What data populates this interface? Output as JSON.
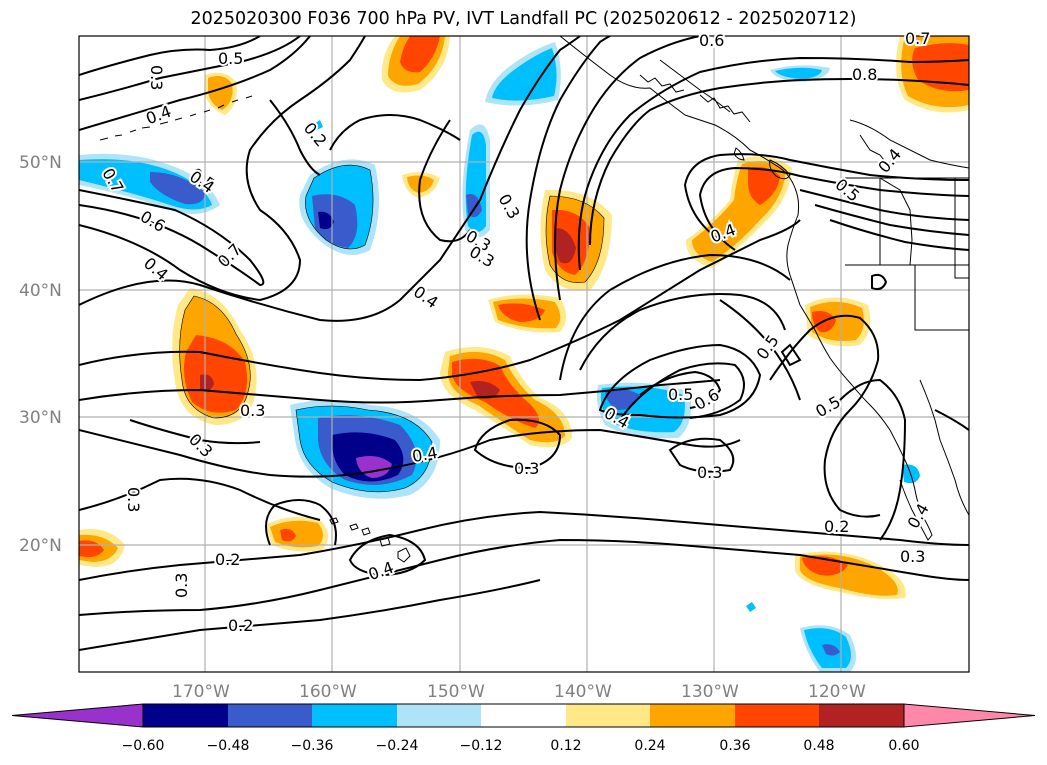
{
  "title": "2025020300 F036 700 hPa PV, IVT Landfall PC (2025020612 - 2025020712)",
  "lat_labels": [
    "50°N",
    "40°N",
    "30°N",
    "20°N"
  ],
  "lon_labels": [
    "170°W",
    "160°W",
    "150°W",
    "140°W",
    "130°W",
    "120°W"
  ],
  "contour_labels": [
    "0.5",
    "0.3",
    "0.4",
    "0.2",
    "0.5",
    "0.7",
    "0.6",
    "0.7",
    "0.4",
    "0.3",
    "0.4",
    "0.3",
    "0.4",
    "0.3",
    "0.3",
    "0.5",
    "0.6",
    "0.8",
    "0.4",
    "0.5",
    "0.4",
    "0.7",
    "0.6",
    "0.5",
    "0.5",
    "0.4",
    "0.3",
    "0.4",
    "0.3",
    "0.3",
    "0.4",
    "0.3",
    "0.2",
    "0.2",
    "0.2",
    "0.3",
    "0.3",
    "0.4"
  ],
  "colorbar": {
    "ticks": [
      "−0.60",
      "−0.48",
      "−0.36",
      "−0.24",
      "−0.12",
      "0.12",
      "0.24",
      "0.36",
      "0.48",
      "0.60"
    ],
    "colors": [
      "#9932cc",
      "#00008b",
      "#3a5bcc",
      "#00bfff",
      "#aee3f8",
      "#ffffff",
      "#ffe888",
      "#ffa500",
      "#ff4500",
      "#b22222",
      "#ff88aa"
    ]
  }
}
